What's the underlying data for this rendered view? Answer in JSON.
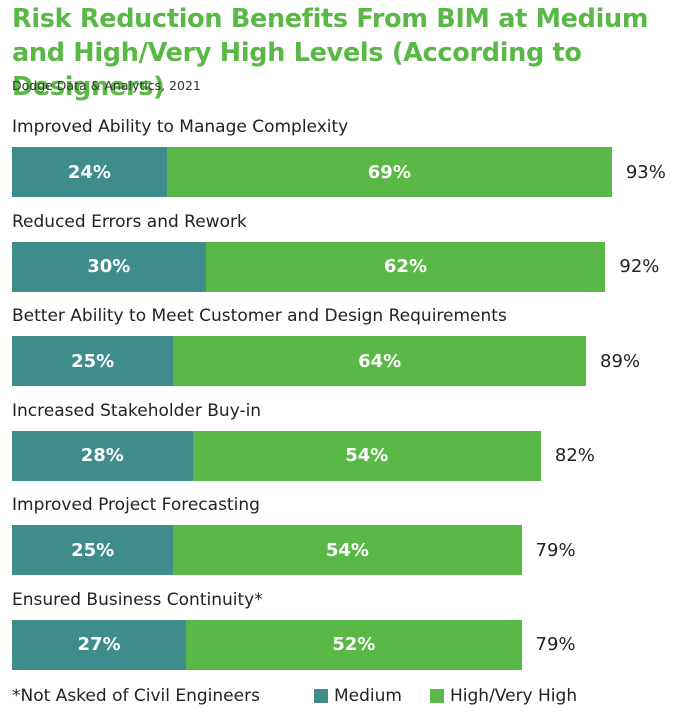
{
  "chart_data": {
    "type": "bar",
    "orientation": "horizontal",
    "stacked": true,
    "title": "Risk Reduction Benefits From BIM at Medium and High/Very High Levels (According to Designers)",
    "source": "Dodge Data & Analytics, 2021",
    "categories": [
      "Improved Ability to Manage Complexity",
      "Reduced Errors and Rework",
      "Better Ability to Meet Customer and Design Requirements",
      "Increased Stakeholder Buy-in",
      "Improved Project Forecasting",
      "Ensured Business Continuity*"
    ],
    "series": [
      {
        "name": "Medium",
        "color": "#3e8c8c",
        "values": [
          24,
          30,
          25,
          28,
          25,
          27
        ]
      },
      {
        "name": "High/Very High",
        "color": "#5ab946",
        "values": [
          69,
          62,
          64,
          54,
          54,
          52
        ]
      }
    ],
    "totals": [
      93,
      92,
      89,
      82,
      79,
      79
    ],
    "value_suffix": "%",
    "legend_position": "bottom",
    "footnote": "*Not Asked of Civil Engineers"
  }
}
